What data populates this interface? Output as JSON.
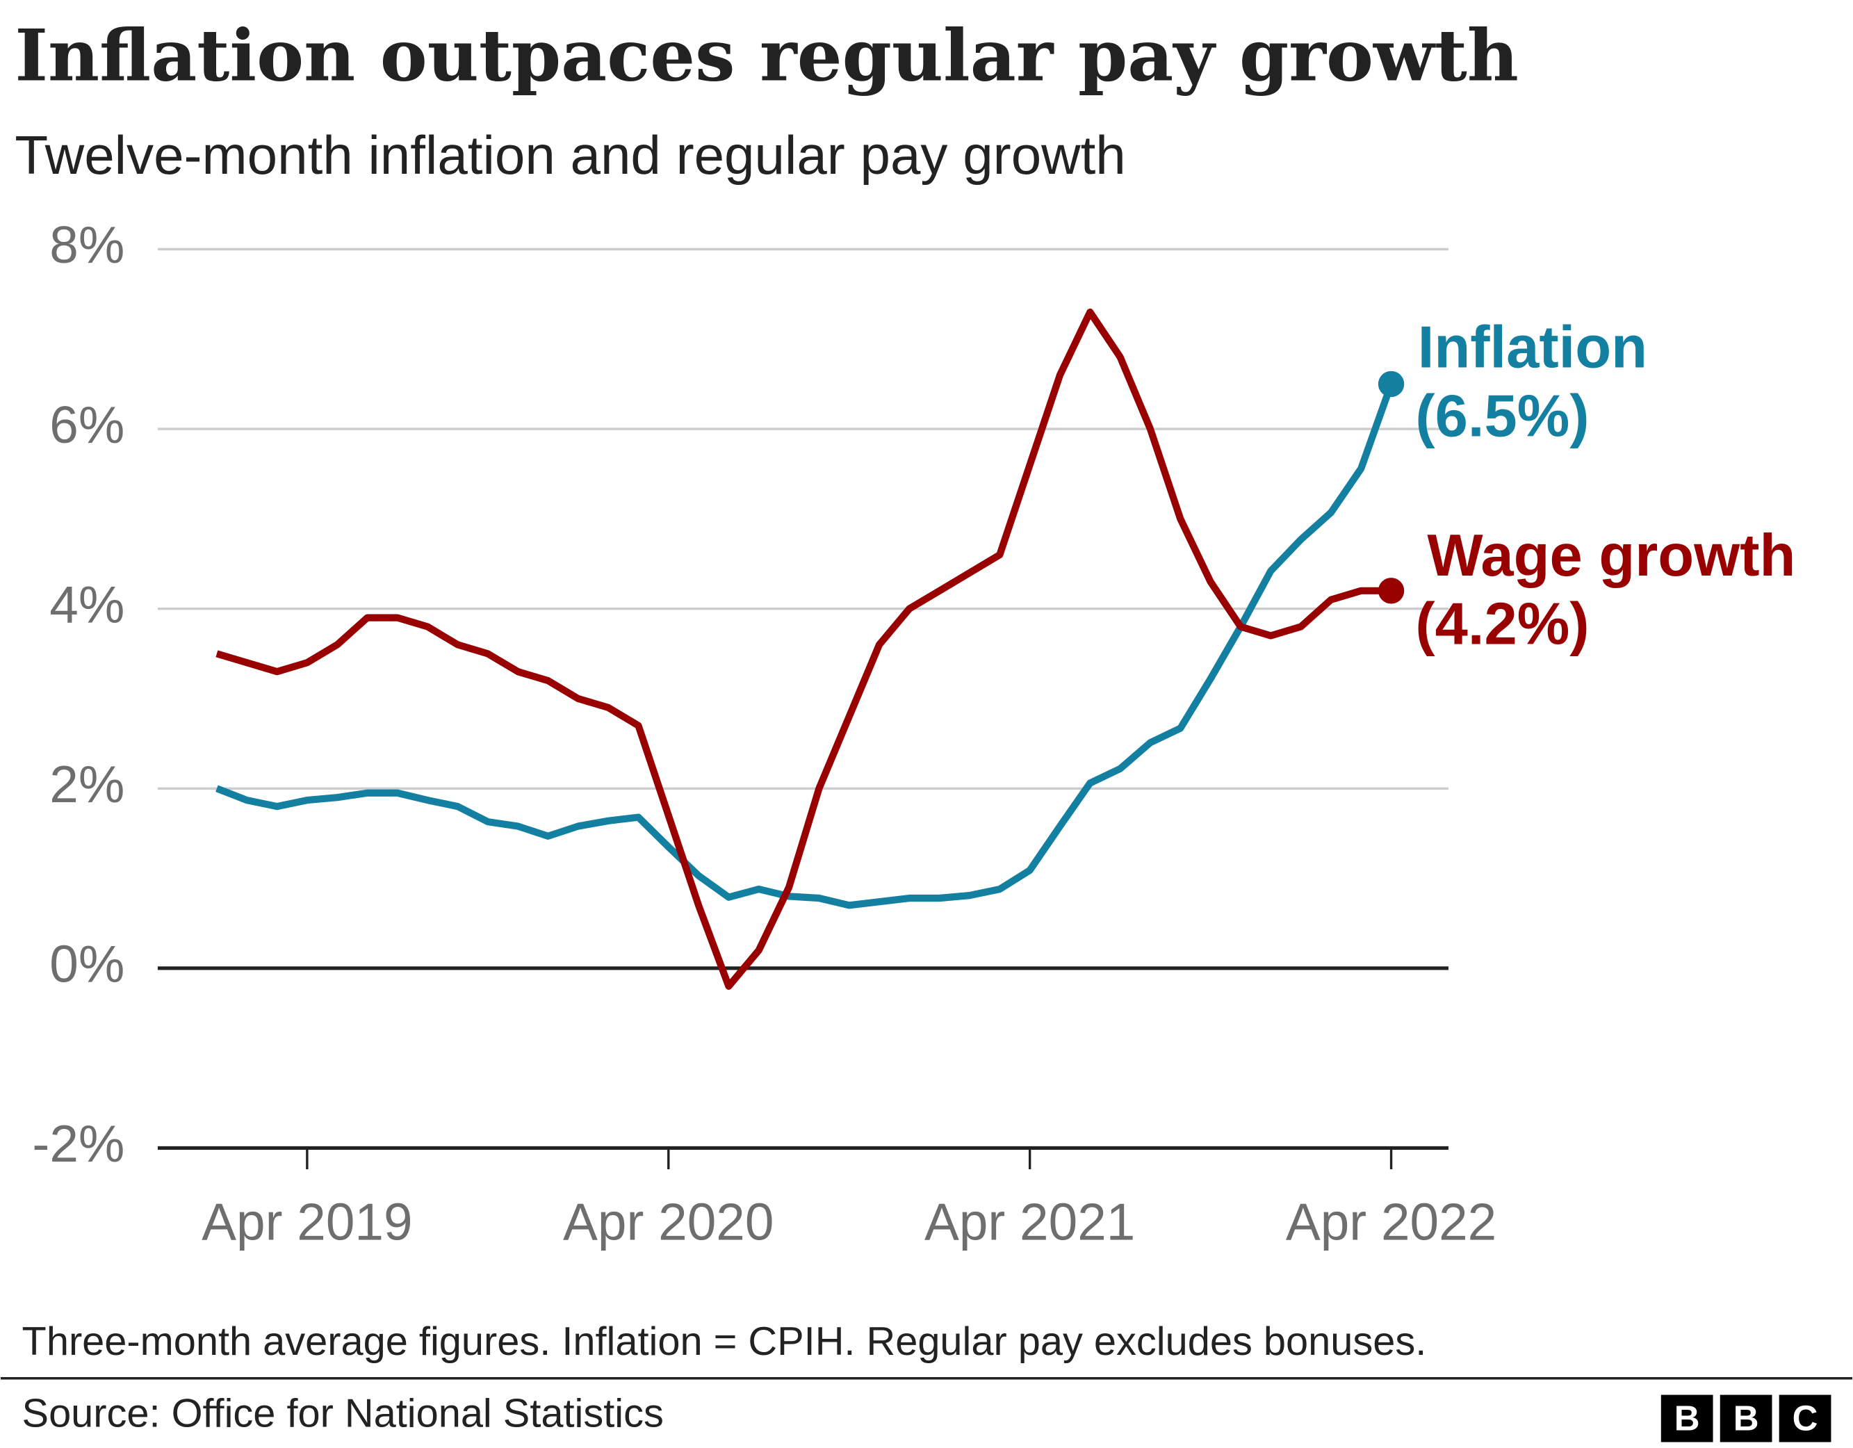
{
  "chart_data": {
    "type": "line",
    "title": "Inflation outpaces regular pay growth",
    "subtitle": "Twelve-month inflation and regular pay growth",
    "note": "Three-month average figures. Inflation = CPIH. Regular pay excludes bonuses.",
    "source": "Source: Office for National Statistics",
    "categories": [
      null,
      null,
      null,
      "Apr 2019",
      null,
      null,
      null,
      null,
      null,
      null,
      null,
      null,
      null,
      null,
      null,
      "Apr 2020",
      null,
      null,
      null,
      null,
      null,
      null,
      null,
      null,
      null,
      null,
      null,
      "Apr 2021",
      null,
      null,
      null,
      null,
      null,
      null,
      null,
      null,
      null,
      null,
      null,
      "Apr 2022"
    ],
    "series": [
      {
        "name": "Inflation",
        "color": "#1380a1",
        "values": [
          2.0,
          1.87,
          1.8,
          1.87,
          1.9,
          1.95,
          1.95,
          1.87,
          1.8,
          1.63,
          1.58,
          1.47,
          1.58,
          1.64,
          1.68,
          1.35,
          1.03,
          0.79,
          0.88,
          0.8,
          0.78,
          0.7,
          0.74,
          0.78,
          0.78,
          0.81,
          0.88,
          1.09,
          1.58,
          2.06,
          2.22,
          2.51,
          2.67,
          3.22,
          3.8,
          4.42,
          4.77,
          5.07,
          5.56,
          6.5
        ],
        "value_labels": [
          null,
          null,
          null,
          null,
          null,
          null,
          null,
          null,
          null,
          null,
          null,
          null,
          null,
          null,
          null,
          null,
          null,
          null,
          null,
          null,
          null,
          null,
          null,
          null,
          null,
          null,
          null,
          null,
          null,
          null,
          null,
          null,
          null,
          null,
          null,
          null,
          null,
          null,
          null,
          "(6.5%)"
        ]
      },
      {
        "name": "Wage growth",
        "color": "#990000",
        "values": [
          3.5,
          3.4,
          3.3,
          3.4,
          3.6,
          3.9,
          3.9,
          3.8,
          3.6,
          3.5,
          3.3,
          3.2,
          3.0,
          2.9,
          2.7,
          1.7,
          0.7,
          -0.2,
          0.2,
          0.9,
          2.0,
          2.8,
          3.6,
          4.0,
          4.2,
          4.4,
          4.6,
          5.6,
          6.6,
          7.3,
          6.8,
          6.0,
          5.0,
          4.3,
          3.8,
          3.7,
          3.8,
          4.1,
          4.2,
          4.2
        ],
        "value_labels": [
          null,
          null,
          null,
          null,
          null,
          null,
          null,
          null,
          null,
          null,
          null,
          null,
          null,
          null,
          null,
          null,
          null,
          null,
          null,
          null,
          null,
          null,
          null,
          null,
          null,
          null,
          null,
          null,
          null,
          null,
          null,
          null,
          null,
          null,
          null,
          null,
          null,
          null,
          null,
          "(4.2%)"
        ]
      }
    ],
    "ylim": [
      -2,
      8
    ],
    "yticks": [
      {
        "value": -2,
        "label": "-2%"
      },
      {
        "value": 0,
        "label": "0%"
      },
      {
        "value": 2,
        "label": "2%"
      },
      {
        "value": 4,
        "label": "4%"
      },
      {
        "value": 6,
        "label": "6%"
      },
      {
        "value": 8,
        "label": "8%"
      }
    ],
    "grid": true
  }
}
